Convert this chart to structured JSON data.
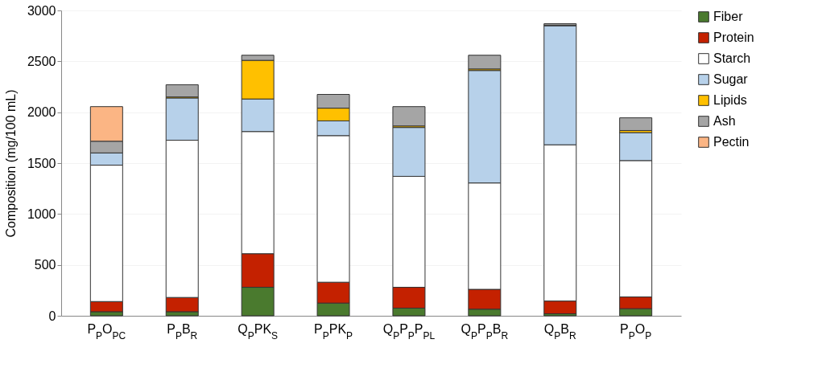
{
  "chart_data": {
    "type": "bar",
    "stacked": true,
    "ylabel": "Composition (mg/100 mL)",
    "categories": [
      "P$_{P}$O$_{PC}$",
      "P$_{P}$B$_{R}$",
      "Q$_{P}$PK$_{S}$",
      "P$_{P}$PK$_{P}$",
      "Q$_{P}$P$_{P}$P$_{PL}$",
      "Q$_{P}$P$_{P}$B$_{R}$",
      "Q$_{P}$B$_{R}$",
      "P$_{P}$O$_{P}$"
    ],
    "series": [
      {
        "name": "Fiber",
        "color": "#4a7a2e",
        "values": [
          40,
          40,
          280,
          125,
          75,
          65,
          20,
          70
        ]
      },
      {
        "name": "Protein",
        "color": "#c42100",
        "values": [
          100,
          140,
          330,
          205,
          205,
          195,
          125,
          115
        ]
      },
      {
        "name": "Starch",
        "color": "#ffffff",
        "values": [
          1340,
          1545,
          1200,
          1440,
          1090,
          1045,
          1535,
          1340
        ]
      },
      {
        "name": "Sugar",
        "color": "#b7d1ea",
        "values": [
          120,
          415,
          320,
          145,
          480,
          1105,
          1170,
          275
        ]
      },
      {
        "name": "Lipids",
        "color": "#ffc000",
        "values": [
          null,
          10,
          380,
          125,
          15,
          15,
          5,
          20
        ]
      },
      {
        "name": "Ash",
        "color": "#a5a5a5",
        "values": [
          115,
          120,
          50,
          135,
          190,
          135,
          15,
          125
        ]
      },
      {
        "name": "Pectin",
        "color": "#fbb584",
        "values": [
          340,
          null,
          null,
          null,
          null,
          null,
          null,
          null
        ]
      }
    ],
    "ylim": [
      0,
      3000
    ],
    "yticks": [
      0,
      500,
      1000,
      1500,
      2000,
      2500,
      3000
    ],
    "grid": "y",
    "legend": "right"
  }
}
